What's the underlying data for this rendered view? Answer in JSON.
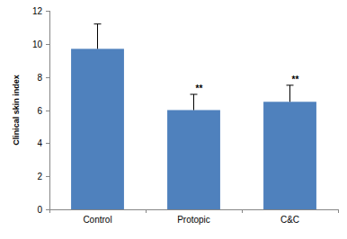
{
  "chart_data": {
    "type": "bar",
    "y_label": "Clinical skin index",
    "categories": [
      "Control",
      "Protopic",
      "C&C"
    ],
    "values": [
      9.7,
      6.0,
      6.5
    ],
    "errors": [
      1.5,
      0.95,
      1.0
    ],
    "color": "#4f81bd",
    "ylim": [
      0,
      12
    ],
    "yticks": [
      0,
      2,
      4,
      6,
      8,
      10,
      12
    ],
    "grid": false,
    "annotations": [
      {
        "x": "Protopic",
        "text": "**"
      },
      {
        "x": "C&C",
        "text": "**"
      }
    ]
  }
}
